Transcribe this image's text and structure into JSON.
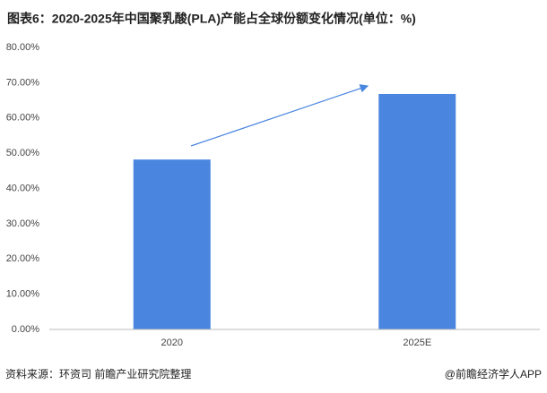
{
  "chart_data": {
    "type": "bar",
    "title": "图表6：2020-2025年中国聚乳酸(PLA)产能占全球份额变化情况(单位：%)",
    "categories": [
      "2020",
      "2025E"
    ],
    "values": [
      48.2,
      66.8
    ],
    "color": "#4a86e0",
    "ylim": [
      0,
      80
    ],
    "yticks": [
      {
        "value": 0,
        "label": "0.00%"
      },
      {
        "value": 10,
        "label": "10.00%"
      },
      {
        "value": 20,
        "label": "20.00%"
      },
      {
        "value": 30,
        "label": "30.00%"
      },
      {
        "value": 40,
        "label": "40.00%"
      },
      {
        "value": 50,
        "label": "50.00%"
      },
      {
        "value": 60,
        "label": "60.00%"
      },
      {
        "value": 70,
        "label": "70.00%"
      },
      {
        "value": 80,
        "label": "80.00%"
      }
    ],
    "source": "资料来源：环资司 前瞻产业研究院整理",
    "credit": "@前瞻经济学人APP"
  }
}
